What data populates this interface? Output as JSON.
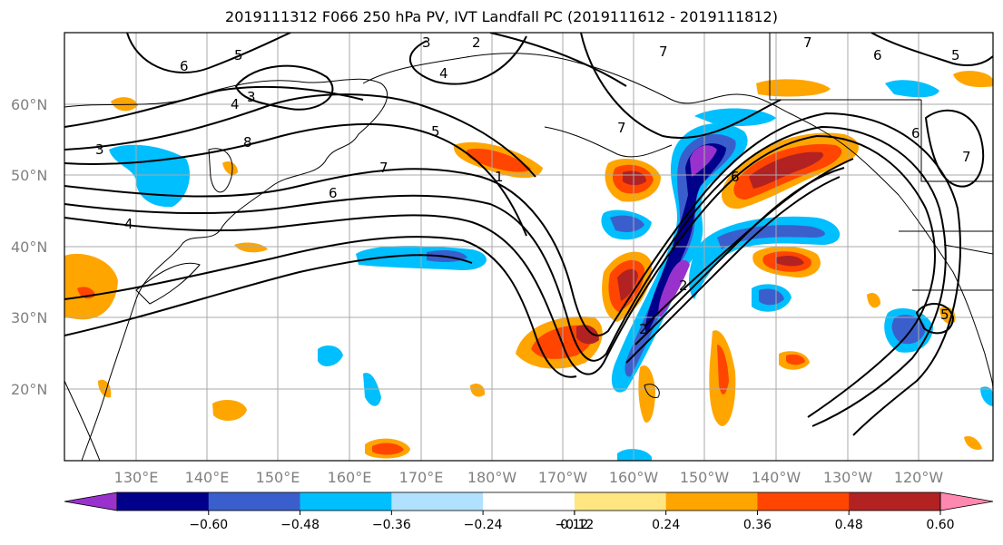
{
  "title": "2019111312 F066 250 hPa PV, IVT Landfall PC (2019111612 - 2019111812)",
  "lon_labels": [
    "130°E",
    "140°E",
    "150°E",
    "160°E",
    "170°E",
    "180°W",
    "170°W",
    "160°W",
    "150°W",
    "140°W",
    "130°W",
    "120°W"
  ],
  "lat_labels": [
    "60°N",
    "50°N",
    "40°N",
    "30°N",
    "20°N"
  ],
  "colorbar": {
    "tick_labels": [
      "−0.60",
      "−0.48",
      "−0.36",
      "−0.24",
      "−0.12",
      "0.12",
      "0.24",
      "0.36",
      "0.48",
      "0.60"
    ],
    "colors": [
      "#9932cc",
      "#00008b",
      "#3a5fcd",
      "#00bfff",
      "#b0e2ff",
      "#ffffff",
      "#ffe680",
      "#ffa500",
      "#ff4500",
      "#b22222",
      "#ff88b0"
    ]
  },
  "contour_labels": [
    "6",
    "5",
    "3",
    "2",
    "7",
    "6",
    "5",
    "4",
    "3",
    "4",
    "8",
    "5",
    "7",
    "6",
    "3",
    "4",
    "7",
    "6",
    "2",
    "5",
    "7",
    "1",
    "2",
    "6",
    "7"
  ]
}
